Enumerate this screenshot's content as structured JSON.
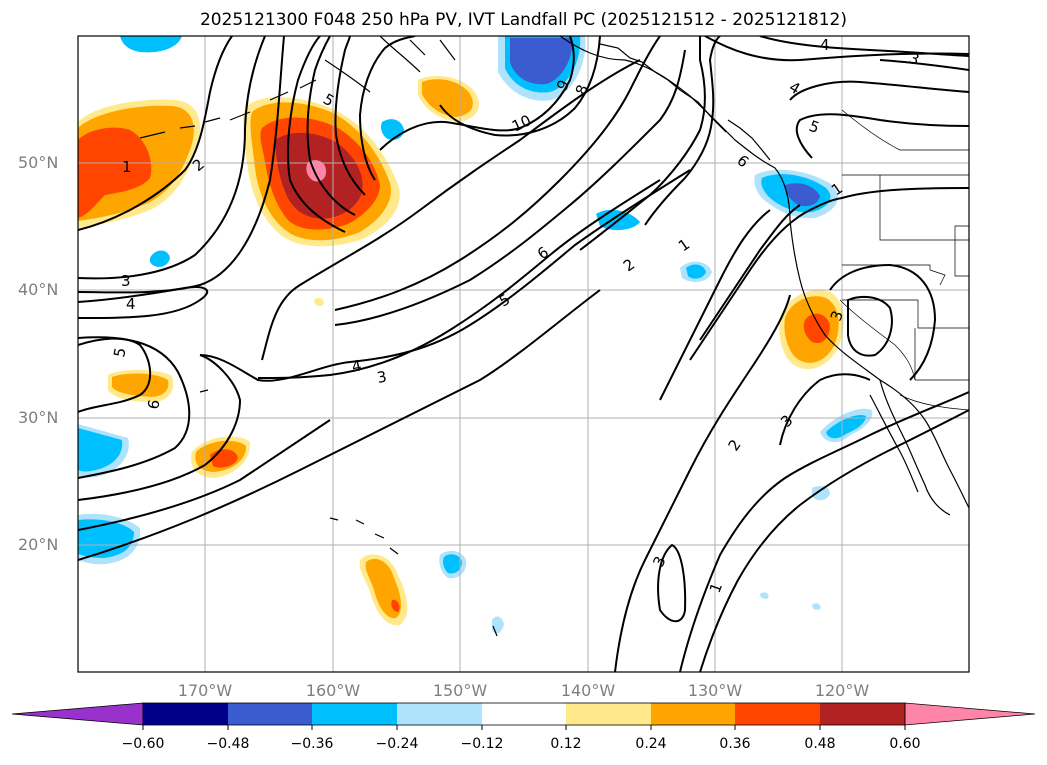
{
  "title": "2025121300 F048 250 hPa PV, IVT Landfall PC (2025121512 - 2025121812)",
  "lat_labels": [
    "50°N",
    "40°N",
    "30°N",
    "20°N"
  ],
  "lon_labels": [
    "170°W",
    "160°W",
    "150°W",
    "140°W",
    "130°W",
    "120°W"
  ],
  "colorbar": {
    "ticks": [
      "−0.60",
      "−0.48",
      "−0.36",
      "−0.24",
      "−0.12",
      "0.12",
      "0.24",
      "0.36",
      "0.48",
      "0.60"
    ],
    "colors": [
      "#9932cc",
      "#00008b",
      "#3b5bd1",
      "#00bfff",
      "#aee3fb",
      "#ffffff",
      "#ffe98a",
      "#ffa500",
      "#ff4500",
      "#b22222",
      "#ff85a8"
    ]
  },
  "contour_labels": [
    "10",
    "9",
    "8",
    "6",
    "5",
    "4",
    "3",
    "2",
    "1",
    "1",
    "2",
    "3",
    "4",
    "5",
    "6",
    "4",
    "3",
    "3",
    "3",
    "2",
    "1",
    "3",
    "1",
    "4",
    "5",
    "6",
    "5"
  ],
  "chart_data": {
    "type": "map",
    "fields": {
      "shaded": "250 hPa PV, IVT Landfall PC",
      "contours": "black line contours"
    },
    "levels": [
      -0.6,
      -0.48,
      -0.36,
      -0.24,
      -0.12,
      0.12,
      0.24,
      0.36,
      0.48,
      0.6
    ],
    "lat_range_deg": [
      10,
      60
    ],
    "lon_range_deg": [
      -180,
      -110
    ],
    "grid": true,
    "colorbar_placement": "bottom"
  }
}
